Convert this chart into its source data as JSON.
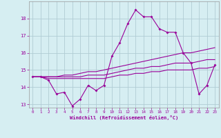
{
  "xlabel": "Windchill (Refroidissement éolien,°C)",
  "background_color": "#d6eef2",
  "grid_color": "#b0ccd4",
  "line_color": "#990099",
  "x": [
    0,
    1,
    2,
    3,
    4,
    5,
    6,
    7,
    8,
    9,
    10,
    11,
    12,
    13,
    14,
    15,
    16,
    17,
    18,
    19,
    20,
    21,
    22,
    23
  ],
  "y_main": [
    14.6,
    14.6,
    14.4,
    13.6,
    13.7,
    12.9,
    13.3,
    14.1,
    13.8,
    14.1,
    15.8,
    16.6,
    17.7,
    18.5,
    18.1,
    18.1,
    17.4,
    17.2,
    17.2,
    16.0,
    15.4,
    13.6,
    14.1,
    15.3
  ],
  "y_upper": [
    14.6,
    14.6,
    14.6,
    14.6,
    14.7,
    14.7,
    14.8,
    14.9,
    14.9,
    15.0,
    15.1,
    15.2,
    15.3,
    15.4,
    15.5,
    15.6,
    15.7,
    15.8,
    15.9,
    16.0,
    16.0,
    16.1,
    16.2,
    16.3
  ],
  "y_mid": [
    14.6,
    14.6,
    14.6,
    14.6,
    14.6,
    14.6,
    14.6,
    14.7,
    14.7,
    14.7,
    14.8,
    14.9,
    15.0,
    15.1,
    15.1,
    15.2,
    15.2,
    15.3,
    15.4,
    15.4,
    15.4,
    15.5,
    15.6,
    15.6
  ],
  "y_lower": [
    14.6,
    14.6,
    14.5,
    14.5,
    14.5,
    14.5,
    14.5,
    14.5,
    14.5,
    14.5,
    14.6,
    14.7,
    14.7,
    14.8,
    14.8,
    14.9,
    14.9,
    15.0,
    15.0,
    15.0,
    15.0,
    15.1,
    15.1,
    15.2
  ],
  "ylim": [
    12.8,
    19.0
  ],
  "yticks": [
    13,
    14,
    15,
    16,
    17,
    18
  ],
  "xlim": [
    -0.5,
    23.5
  ],
  "xticks": [
    0,
    1,
    2,
    3,
    4,
    5,
    6,
    7,
    8,
    9,
    10,
    11,
    12,
    13,
    14,
    15,
    16,
    17,
    18,
    19,
    20,
    21,
    22,
    23
  ]
}
